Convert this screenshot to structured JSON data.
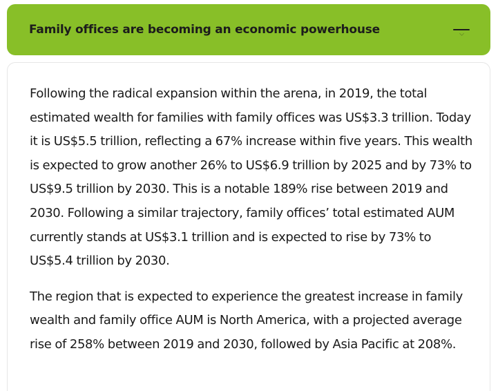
{
  "accordion": {
    "title": "Family offices are becoming an economic powerhouse",
    "toggle_icon": "minus-icon",
    "accent_color": "#88bf28",
    "expanded": true,
    "paragraphs": [
      "Following the radical expansion within the arena, in 2019, the total estimated wealth for families with family offices was US$3.3 trillion. Today it is US$5.5 trillion, reflecting a 67% increase within five years. This wealth is expected to grow another 26% to US$6.9 trillion by 2025 and by 73% to US$9.5 trillion by 2030. This is a notable 189% rise between 2019 and 2030. Following a similar trajectory, family offices’ total estimated AUM currently stands at US$3.1 trillion and is expected to rise by 73% to US$5.4 trillion by 2030.",
      "The region that is expected to experience the greatest increase in family wealth and family office AUM is North America, with a projected average rise of 258% between 2019 and 2030, followed by Asia Pacific at 208%."
    ]
  }
}
